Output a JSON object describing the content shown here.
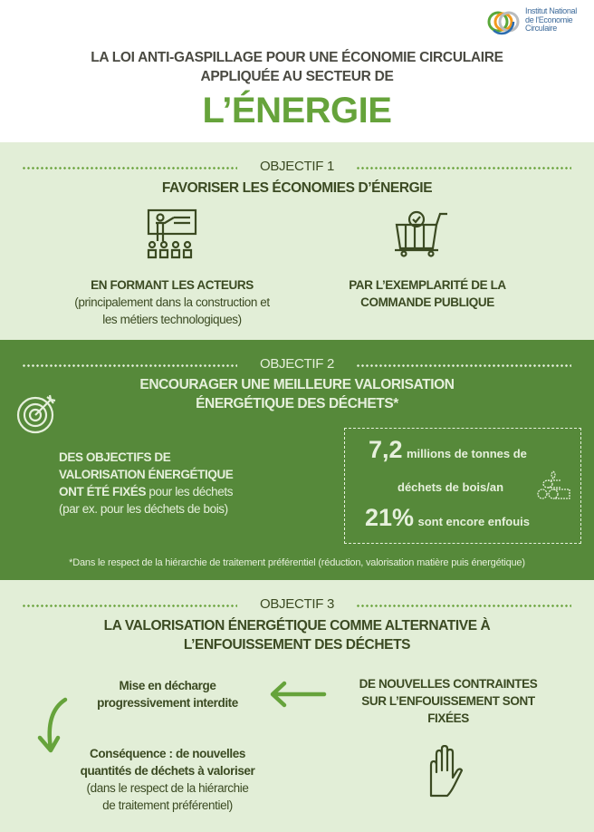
{
  "logo": {
    "line1": "Institut National",
    "line2": "de l'Economie",
    "line3": "Circulaire"
  },
  "header": {
    "line1": "LA LOI ANTI-GASPILLAGE POUR UNE ÉCONOMIE CIRCULAIRE",
    "line2": "APPLIQUÉE AU SECTEUR DE",
    "title": "L’ÉNERGIE"
  },
  "colors": {
    "light_bg": "#e2eed7",
    "dark_bg": "#56893a",
    "accent": "#66a33b",
    "text_dark": "#3b4a22"
  },
  "obj1": {
    "label": "OBJECTIF 1",
    "title": "FAVORISER LES ÉCONOMIES D’ÉNERGIE",
    "left": {
      "icon": "teacher-board-icon",
      "bold": "EN FORMANT LES ACTEURS",
      "text1": "(principalement dans la construction et",
      "text2": "les métiers technologiques)"
    },
    "right": {
      "icon": "shopping-cart-check-icon",
      "line1": "PAR L’EXEMPLARITÉ DE LA",
      "line2": "COMMANDE PUBLIQUE"
    }
  },
  "obj2": {
    "label": "OBJECTIF 2",
    "title1": "ENCOURAGER UNE MEILLEURE VALORISATION",
    "title2": "ÉNERGÉTIQUE DES DÉCHETS*",
    "icon": "target-icon",
    "left": {
      "line1": "DES OBJECTIFS DE",
      "line2": "VALORISATION ÉNERGÉTIQUE",
      "line3_bold": "ONT ÉTÉ FIXÉS",
      "line3_rest": " pour les déchets",
      "line4": "(par ex. pour les déchets de bois)"
    },
    "stats": {
      "big1": "7,2",
      "text1": "millions de tonnes de",
      "text2": "déchets de bois/an",
      "big2": "21%",
      "text3": "sont encore enfouis",
      "icon": "wood-logs-icon"
    },
    "footnote": "*Dans le respect de la hiérarchie de traitement préférentiel (réduction, valorisation matière puis énergétique)"
  },
  "obj3": {
    "label": "OBJECTIF 3",
    "title1": "LA VALORISATION ÉNERGÉTIQUE COMME ALTERNATIVE À",
    "title2": "L’ENFOUISSEMENT DES DÉCHETS",
    "left1": {
      "line1": "Mise en décharge",
      "line2": "progressivement interdite"
    },
    "left2": {
      "line1": "Conséquence : de nouvelles",
      "line2": "quantités de déchets à valoriser",
      "line3": "(dans le respect de la hiérarchie",
      "line4": "de traitement préférentiel)"
    },
    "right": {
      "line1": "DE NOUVELLES CONTRAINTES",
      "line2": "SUR L’ENFOUISSEMENT SONT",
      "line3": "FIXÉES",
      "icon": "stop-hand-icon"
    }
  }
}
